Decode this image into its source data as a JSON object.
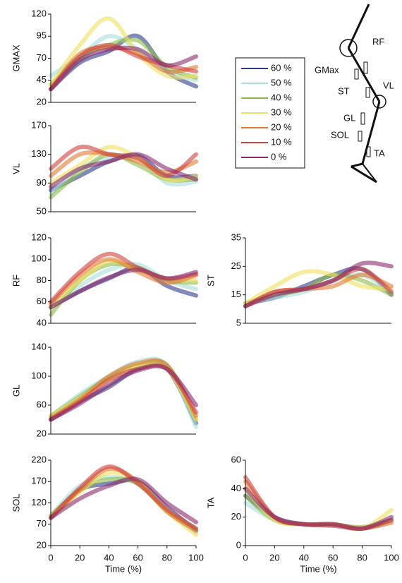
{
  "chart_data": [
    {
      "type": "line",
      "y_label": "GMAX",
      "x": [
        0,
        20,
        40,
        60,
        80,
        100
      ],
      "xlim": [
        0,
        100
      ],
      "ylim": [
        20,
        120
      ],
      "yticks": [
        20,
        45,
        70,
        95,
        120
      ],
      "series": [
        {
          "name": "60 %",
          "color": "#2e3a8c",
          "values": [
            35,
            65,
            78,
            95,
            55,
            38
          ]
        },
        {
          "name": "50 %",
          "color": "#a8dcdc",
          "values": [
            50,
            72,
            95,
            80,
            55,
            45
          ]
        },
        {
          "name": "40 %",
          "color": "#8cba4a",
          "values": [
            40,
            70,
            85,
            90,
            60,
            48
          ]
        },
        {
          "name": "30 %",
          "color": "#f0e060",
          "values": [
            40,
            85,
            115,
            75,
            50,
            50
          ]
        },
        {
          "name": "20 %",
          "color": "#e07a30",
          "values": [
            35,
            75,
            82,
            75,
            55,
            60
          ]
        },
        {
          "name": "10 %",
          "color": "#d04040",
          "values": [
            35,
            72,
            85,
            72,
            62,
            55
          ]
        },
        {
          "name": "0 %",
          "color": "#8a2a6a",
          "values": [
            35,
            68,
            80,
            80,
            62,
            72
          ]
        }
      ]
    },
    {
      "type": "line",
      "y_label": "VL",
      "x": [
        0,
        20,
        40,
        60,
        80,
        100
      ],
      "xlim": [
        0,
        100
      ],
      "ylim": [
        50,
        170
      ],
      "yticks": [
        50,
        90,
        130,
        170
      ],
      "series": [
        {
          "name": "60 %",
          "color": "#2e3a8c",
          "values": [
            80,
            100,
            120,
            128,
            100,
            100
          ]
        },
        {
          "name": "50 %",
          "color": "#a8dcdc",
          "values": [
            75,
            110,
            125,
            125,
            90,
            92
          ]
        },
        {
          "name": "40 %",
          "color": "#8cba4a",
          "values": [
            70,
            105,
            130,
            115,
            95,
            95
          ]
        },
        {
          "name": "30 %",
          "color": "#f0e060",
          "values": [
            90,
            115,
            140,
            125,
            95,
            100
          ]
        },
        {
          "name": "20 %",
          "color": "#e07a30",
          "values": [
            100,
            130,
            130,
            120,
            105,
            120
          ]
        },
        {
          "name": "10 %",
          "color": "#d04040",
          "values": [
            110,
            140,
            130,
            125,
            100,
            130
          ]
        },
        {
          "name": "0 %",
          "color": "#8a2a6a",
          "values": [
            85,
            110,
            120,
            130,
            110,
            95
          ]
        }
      ]
    },
    {
      "type": "line",
      "y_label": "RF",
      "x": [
        0,
        20,
        40,
        60,
        80,
        100
      ],
      "xlim": [
        0,
        100
      ],
      "ylim": [
        40,
        120
      ],
      "yticks": [
        40,
        60,
        80,
        100,
        120
      ],
      "series": [
        {
          "name": "60 %",
          "color": "#2e3a8c",
          "values": [
            55,
            70,
            82,
            92,
            75,
            66
          ]
        },
        {
          "name": "50 %",
          "color": "#a8dcdc",
          "values": [
            55,
            75,
            90,
            95,
            80,
            72
          ]
        },
        {
          "name": "40 %",
          "color": "#8cba4a",
          "values": [
            48,
            80,
            95,
            92,
            80,
            78
          ]
        },
        {
          "name": "30 %",
          "color": "#f0e060",
          "values": [
            55,
            80,
            98,
            90,
            82,
            80
          ]
        },
        {
          "name": "20 %",
          "color": "#e07a30",
          "values": [
            58,
            85,
            100,
            88,
            78,
            85
          ]
        },
        {
          "name": "10 %",
          "color": "#d04040",
          "values": [
            60,
            88,
            105,
            92,
            82,
            86
          ]
        },
        {
          "name": "0 %",
          "color": "#8a2a6a",
          "values": [
            55,
            70,
            83,
            90,
            82,
            88
          ]
        }
      ]
    },
    {
      "type": "line",
      "y_label": "ST",
      "x": [
        0,
        20,
        40,
        60,
        80,
        100
      ],
      "xlim": [
        0,
        100
      ],
      "ylim": [
        5,
        35
      ],
      "yticks": [
        5,
        15,
        25,
        35
      ],
      "series": [
        {
          "name": "60 %",
          "color": "#2e3a8c",
          "values": [
            12,
            14,
            18,
            22,
            24,
            15
          ]
        },
        {
          "name": "50 %",
          "color": "#a8dcdc",
          "values": [
            12,
            14,
            16,
            20,
            22,
            16
          ]
        },
        {
          "name": "40 %",
          "color": "#8cba4a",
          "values": [
            12,
            15,
            17,
            22,
            20,
            15
          ]
        },
        {
          "name": "30 %",
          "color": "#f0e060",
          "values": [
            12,
            18,
            23,
            22,
            18,
            17
          ]
        },
        {
          "name": "20 %",
          "color": "#e07a30",
          "values": [
            11,
            16,
            17,
            18,
            22,
            18
          ]
        },
        {
          "name": "10 %",
          "color": "#d04040",
          "values": [
            11,
            16,
            17,
            20,
            24,
            16
          ]
        },
        {
          "name": "0 %",
          "color": "#8a2a6a",
          "values": [
            11,
            15,
            17,
            20,
            26,
            25
          ]
        }
      ]
    },
    {
      "type": "line",
      "y_label": "GL",
      "x": [
        0,
        20,
        40,
        60,
        80,
        100
      ],
      "xlim": [
        0,
        100
      ],
      "ylim": [
        20,
        140
      ],
      "yticks": [
        20,
        60,
        100,
        140
      ],
      "series": [
        {
          "name": "60 %",
          "color": "#2e3a8c",
          "values": [
            40,
            65,
            85,
            110,
            110,
            35
          ]
        },
        {
          "name": "50 %",
          "color": "#a8dcdc",
          "values": [
            45,
            75,
            100,
            120,
            115,
            30
          ]
        },
        {
          "name": "40 %",
          "color": "#8cba4a",
          "values": [
            45,
            72,
            98,
            115,
            115,
            40
          ]
        },
        {
          "name": "30 %",
          "color": "#f0e060",
          "values": [
            45,
            70,
            95,
            115,
            110,
            40
          ]
        },
        {
          "name": "20 %",
          "color": "#e07a30",
          "values": [
            42,
            68,
            100,
            118,
            115,
            45
          ]
        },
        {
          "name": "10 %",
          "color": "#d04040",
          "values": [
            40,
            65,
            95,
            110,
            110,
            50
          ]
        },
        {
          "name": "0 %",
          "color": "#8a2a6a",
          "values": [
            40,
            62,
            88,
            108,
            110,
            60
          ]
        }
      ]
    },
    {
      "type": "line",
      "y_label": "SOL",
      "x_label": "Time (%)",
      "x": [
        0,
        20,
        40,
        60,
        80,
        100
      ],
      "xlim": [
        0,
        100
      ],
      "xticks": [
        0,
        20,
        40,
        60,
        80,
        100
      ],
      "ylim": [
        20,
        220
      ],
      "yticks": [
        20,
        70,
        120,
        170,
        220
      ],
      "series": [
        {
          "name": "60 %",
          "color": "#2e3a8c",
          "values": [
            85,
            150,
            165,
            170,
            110,
            55
          ]
        },
        {
          "name": "50 %",
          "color": "#a8dcdc",
          "values": [
            90,
            160,
            180,
            165,
            105,
            50
          ]
        },
        {
          "name": "40 %",
          "color": "#8cba4a",
          "values": [
            90,
            150,
            175,
            165,
            100,
            60
          ]
        },
        {
          "name": "30 %",
          "color": "#f0e060",
          "values": [
            85,
            145,
            190,
            170,
            100,
            45
          ]
        },
        {
          "name": "20 %",
          "color": "#e07a30",
          "values": [
            85,
            150,
            200,
            170,
            100,
            55
          ]
        },
        {
          "name": "10 %",
          "color": "#d04040",
          "values": [
            85,
            155,
            205,
            165,
            105,
            60
          ]
        },
        {
          "name": "0 %",
          "color": "#8a2a6a",
          "values": [
            85,
            130,
            160,
            175,
            120,
            75
          ]
        }
      ]
    },
    {
      "type": "line",
      "y_label": "TA",
      "x_label": "Time (%)",
      "x": [
        0,
        20,
        40,
        60,
        80,
        100
      ],
      "xlim": [
        0,
        100
      ],
      "xticks": [
        0,
        20,
        40,
        60,
        80,
        100
      ],
      "ylim": [
        0,
        60
      ],
      "yticks": [
        0,
        20,
        40,
        60
      ],
      "series": [
        {
          "name": "60 %",
          "color": "#2e3a8c",
          "values": [
            35,
            20,
            15,
            15,
            12,
            18
          ]
        },
        {
          "name": "50 %",
          "color": "#a8dcdc",
          "values": [
            30,
            18,
            15,
            14,
            12,
            17
          ]
        },
        {
          "name": "40 %",
          "color": "#8cba4a",
          "values": [
            35,
            18,
            15,
            15,
            13,
            18
          ]
        },
        {
          "name": "30 %",
          "color": "#f0e060",
          "values": [
            40,
            18,
            15,
            15,
            12,
            25
          ]
        },
        {
          "name": "20 %",
          "color": "#e07a30",
          "values": [
            45,
            20,
            15,
            15,
            12,
            16
          ]
        },
        {
          "name": "10 %",
          "color": "#d04040",
          "values": [
            48,
            20,
            15,
            14,
            12,
            18
          ]
        },
        {
          "name": "0 %",
          "color": "#8a2a6a",
          "values": [
            40,
            20,
            15,
            15,
            12,
            20
          ]
        }
      ]
    }
  ],
  "diagram": {
    "labels": [
      "RF",
      "GMax",
      "ST",
      "VL",
      "GL",
      "SOL",
      "TA"
    ]
  }
}
